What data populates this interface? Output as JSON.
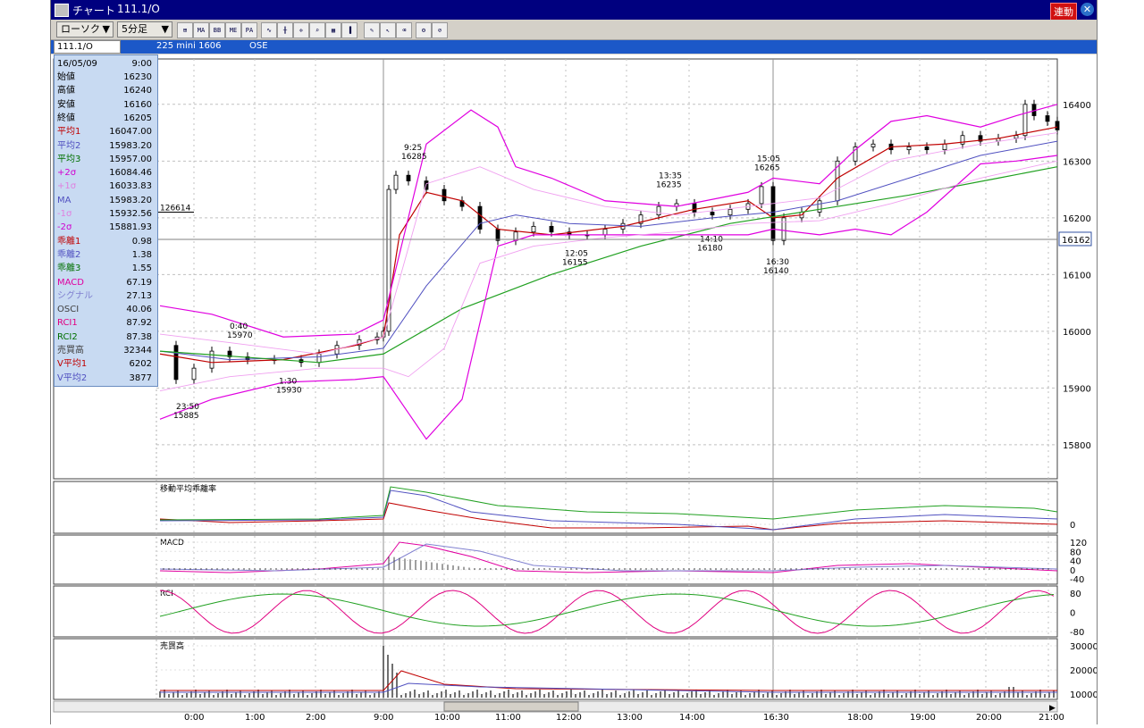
{
  "window": {
    "title": "チャート",
    "symbol_title": "111.1/O",
    "sync_label": "連動",
    "close_glyph": "✕"
  },
  "toolbar": {
    "chart_type": "ローソク",
    "interval": "5分足",
    "buttons": [
      "hierarchy-icon",
      "MA",
      "BB",
      "ME",
      "PA",
      "line-chart-icon",
      "candle-chart-icon",
      "cross-icon",
      "zoom-icon",
      "grid-icon",
      "bars-icon",
      "pen-icon",
      "cursor-icon",
      "eraser-icon",
      "settings-icon",
      "no-draw-icon"
    ],
    "button_labels": {
      "MA": "MA",
      "BB": "BB",
      "ME": "ME",
      "PA": "PA"
    }
  },
  "infobar": {
    "symbol_code": "111.1/O",
    "instrument": "225 mini 1606",
    "exchange": "OSE"
  },
  "data_panel": {
    "date": "16/05/09",
    "time": "9:00",
    "rows": [
      {
        "k": "始値",
        "v": "16230",
        "c": "#000000"
      },
      {
        "k": "高値",
        "v": "16240",
        "c": "#000000"
      },
      {
        "k": "安値",
        "v": "16160",
        "c": "#000000"
      },
      {
        "k": "終値",
        "v": "16205",
        "c": "#000000"
      },
      {
        "k": "平均1",
        "v": "16047.00",
        "c": "#c00000"
      },
      {
        "k": "平均2",
        "v": "15983.20",
        "c": "#5050c0"
      },
      {
        "k": "平均3",
        "v": "15957.00",
        "c": "#007000"
      },
      {
        "k": "+2σ",
        "v": "16084.46",
        "c": "#d000d0"
      },
      {
        "k": "+1σ",
        "v": "16033.83",
        "c": "#e080e0"
      },
      {
        "k": "MA",
        "v": "15983.20",
        "c": "#5050c0"
      },
      {
        "k": "-1σ",
        "v": "15932.56",
        "c": "#e080e0"
      },
      {
        "k": "-2σ",
        "v": "15881.93",
        "c": "#d000d0"
      },
      {
        "k": "乖離1",
        "v": "0.98",
        "c": "#c00000"
      },
      {
        "k": "乖離2",
        "v": "1.38",
        "c": "#5050c0"
      },
      {
        "k": "乖離3",
        "v": "1.55",
        "c": "#007000"
      },
      {
        "k": "MACD",
        "v": "67.19",
        "c": "#e000a0"
      },
      {
        "k": "シグナル",
        "v": "27.13",
        "c": "#8080d0"
      },
      {
        "k": "OSCI",
        "v": "40.06",
        "c": "#404040"
      },
      {
        "k": "RCI1",
        "v": "87.92",
        "c": "#e00080"
      },
      {
        "k": "RCI2",
        "v": "87.38",
        "c": "#007000"
      },
      {
        "k": "売買高",
        "v": "32344",
        "c": "#404040"
      },
      {
        "k": "V平均1",
        "v": "6202",
        "c": "#c00000"
      },
      {
        "k": "V平均2",
        "v": "3877",
        "c": "#5050c0"
      }
    ]
  },
  "chart_data": {
    "type": "line",
    "y_axis": {
      "ticks": [
        16400,
        16300,
        16200,
        16100,
        16000,
        15900,
        15800
      ],
      "range": [
        15740,
        16480
      ]
    },
    "x_ticks": [
      "0:00",
      "1:00",
      "2:00",
      "9:00",
      "10:00",
      "11:00",
      "12:00",
      "13:00",
      "14:00",
      "16:30",
      "18:00",
      "19:00",
      "20:00",
      "21:00"
    ],
    "current_price": "16162",
    "marker_label": "126614",
    "annotations": [
      {
        "time": "0:40",
        "price": "15970"
      },
      {
        "time": "23:50",
        "price": "15885"
      },
      {
        "time": "1:30",
        "price": "15930"
      },
      {
        "time": "9:25",
        "price": "16285"
      },
      {
        "time": "12:05",
        "price": "16155"
      },
      {
        "time": "13:35",
        "price": "16235"
      },
      {
        "time": "14:10",
        "price": "16180"
      },
      {
        "time": "15:05",
        "price": "16265"
      },
      {
        "time": "16:30",
        "price": "16140"
      }
    ],
    "subpanels": [
      {
        "title": "移動平均乖離率",
        "ticks": [
          "0"
        ]
      },
      {
        "title": "MACD",
        "ticks": [
          "120",
          "80",
          "40",
          "0",
          "-40"
        ]
      },
      {
        "title": "RCI",
        "ticks": [
          "80",
          "0",
          "-80"
        ]
      },
      {
        "title": "売買高",
        "ticks": [
          "30000",
          "20000",
          "10000"
        ]
      }
    ],
    "colors": {
      "up": "#ffffff",
      "down": "#000000",
      "ma1": "#c00000",
      "ma2": "#5050c0",
      "ma3": "#20a020",
      "bb2": "#e000e0",
      "bb1": "#f0a0f0",
      "grid": "#c0c0c0"
    }
  }
}
